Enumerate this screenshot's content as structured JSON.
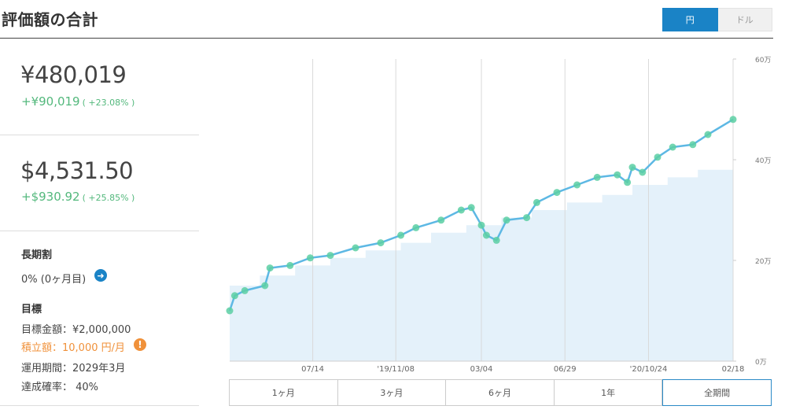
{
  "header": {
    "title": "評価額の合計",
    "currency_yen": "円",
    "currency_dollar": "ドル"
  },
  "summary_yen": {
    "value": "¥480,019",
    "gain": "+¥90,019",
    "gain_pct": "( +23.08% )"
  },
  "summary_usd": {
    "value": "$4,531.50",
    "gain": "+$930.92",
    "gain_pct": "( +25.85% )"
  },
  "long_term": {
    "label": "長期割",
    "value": "0% (0ヶ月目)",
    "arrow_icon": "arrow-right-icon"
  },
  "goal": {
    "label": "目標",
    "amount": "目標金額：¥2,000,000",
    "monthly": "積立額：10,000 円/月",
    "period": "運用期間：2029年3月",
    "probability": "達成確率： 40%",
    "warning_icon": "exclamation-icon"
  },
  "range_buttons": [
    "1ヶ月",
    "3ヶ月",
    "6ヶ月",
    "1年",
    "全期間"
  ],
  "active_range": "全期間",
  "colors": {
    "accent": "#1a83c6",
    "gain": "#53b87c",
    "warning": "#f0913a",
    "line": "#5db8e4",
    "area": "#e4f1fa",
    "marker": "#5ccfa3"
  },
  "chart_data": {
    "type": "area",
    "xticks": [
      "07/14",
      "'19/11/08",
      "03/04",
      "06/29",
      "'20/10/24",
      "02/18"
    ],
    "yticks": [
      "0万",
      "20万",
      "40万",
      "60万"
    ],
    "ylim": [
      0,
      60
    ],
    "grid": "vertical",
    "series": [
      {
        "kind": "invested",
        "x": [
          0,
          0.06,
          0.13,
          0.2,
          0.27,
          0.34,
          0.4,
          0.47,
          0.54,
          0.6,
          0.67,
          0.74,
          0.8,
          0.87,
          0.93,
          1.0
        ],
        "values": [
          15,
          17,
          19,
          20.5,
          22,
          23.5,
          25.5,
          27,
          28.5,
          30,
          31.5,
          33,
          35,
          36.5,
          38,
          39
        ]
      },
      {
        "kind": "value",
        "x": [
          0,
          0.01,
          0.03,
          0.07,
          0.08,
          0.12,
          0.16,
          0.2,
          0.25,
          0.3,
          0.34,
          0.37,
          0.42,
          0.46,
          0.48,
          0.5,
          0.51,
          0.53,
          0.55,
          0.59,
          0.61,
          0.65,
          0.69,
          0.73,
          0.77,
          0.79,
          0.8,
          0.82,
          0.85,
          0.88,
          0.92,
          0.95,
          1.0
        ],
        "values": [
          10,
          13,
          14,
          15,
          18.5,
          19,
          20.5,
          21,
          22.5,
          23.5,
          25,
          26.5,
          28,
          30,
          30.5,
          27,
          25,
          24,
          28,
          28.5,
          31.5,
          33.5,
          35,
          36.5,
          37,
          35.5,
          38.5,
          37.5,
          40.5,
          42.5,
          43,
          45,
          48
        ]
      }
    ]
  }
}
